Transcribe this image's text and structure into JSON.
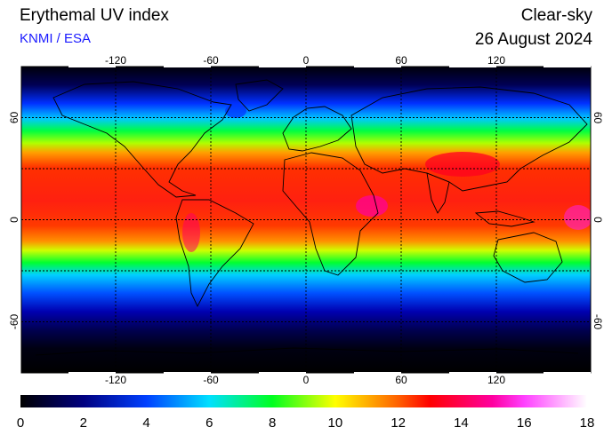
{
  "header": {
    "title": "Erythemal UV index",
    "subtitle": "KNMI / ESA",
    "mode": "Clear-sky",
    "date": "26 August 2024"
  },
  "colors": {
    "subtitle": "#1a1aff",
    "frame": "#000000",
    "ocean_night": "#000010"
  },
  "map": {
    "projection": "equirectangular",
    "lon_range": [
      -180,
      180
    ],
    "lat_range": [
      -90,
      90
    ],
    "gridlines": "dashed every 60 deg lon and 30 deg lat",
    "lon_ticks": [
      "-120",
      "-60",
      "0",
      "60",
      "120"
    ],
    "lat_ticks": [
      "60",
      "0",
      "-60"
    ]
  },
  "colorbar": {
    "min": 0,
    "max": 18,
    "ticks": [
      "0",
      "2",
      "4",
      "6",
      "8",
      "10",
      "12",
      "14",
      "16",
      "18"
    ],
    "stops": [
      {
        "value": 0,
        "color": "#000000"
      },
      {
        "value": 2,
        "color": "#000080"
      },
      {
        "value": 4,
        "color": "#0040ff"
      },
      {
        "value": 6,
        "color": "#00e0ff"
      },
      {
        "value": 8,
        "color": "#00ff20"
      },
      {
        "value": 10,
        "color": "#ffff00"
      },
      {
        "value": 12,
        "color": "#ff6000"
      },
      {
        "value": 13,
        "color": "#ff0000"
      },
      {
        "value": 15,
        "color": "#ff00a0"
      },
      {
        "value": 16,
        "color": "#ff40ff"
      },
      {
        "value": 18,
        "color": "#ffffff"
      }
    ]
  }
}
